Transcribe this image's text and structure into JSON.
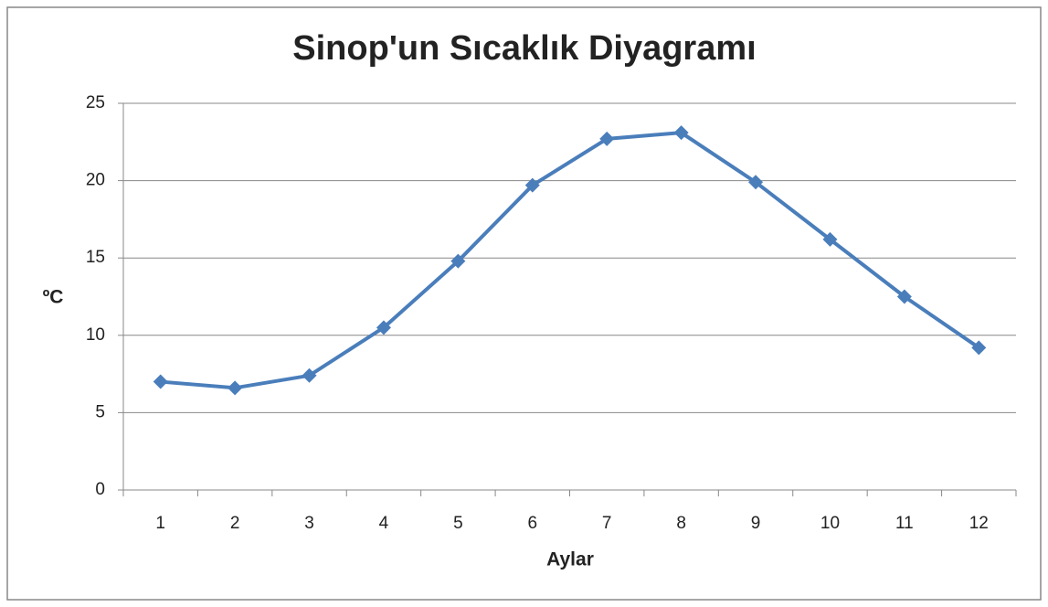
{
  "chart_data": {
    "type": "line",
    "title": "Sinop'un Sıcaklık Diyagramı",
    "x_label": "Aylar",
    "y_label": "ºC",
    "categories": [
      "1",
      "2",
      "3",
      "4",
      "5",
      "6",
      "7",
      "8",
      "9",
      "10",
      "11",
      "12"
    ],
    "series": [
      {
        "color": "#4a7ebb",
        "values": [
          7.0,
          6.6,
          7.4,
          10.5,
          14.8,
          19.7,
          22.7,
          23.1,
          19.9,
          16.2,
          12.5,
          9.2
        ]
      }
    ],
    "ylim": [
      0,
      25
    ],
    "yticks": [
      0,
      5,
      10,
      15,
      20,
      25
    ],
    "grid": true
  }
}
